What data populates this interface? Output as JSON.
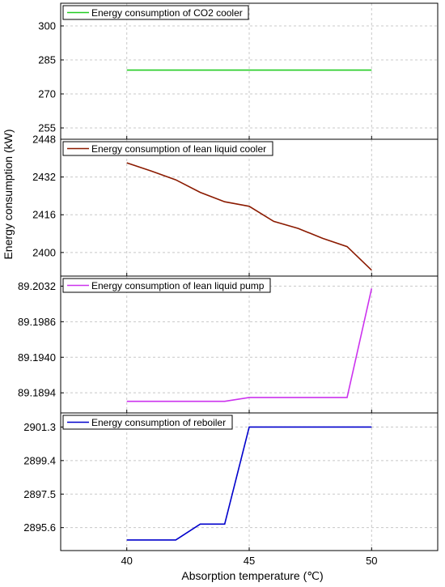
{
  "chart_data": [
    {
      "type": "line",
      "x": [
        40,
        50
      ],
      "series": [
        {
          "name": "Energy consumption of CO2 cooler",
          "values": [
            280.5,
            280.5
          ]
        }
      ],
      "ylim": [
        250,
        310
      ],
      "yticks": [
        "255",
        "270",
        "285",
        "300"
      ],
      "color": "#22cc22"
    },
    {
      "type": "line",
      "x": [
        40,
        41,
        42,
        43,
        44,
        45,
        46,
        47,
        48,
        49,
        50
      ],
      "series": [
        {
          "name": "Energy consumption of lean liquid cooler",
          "values": [
            2438,
            2434.5,
            2430.8,
            2425.5,
            2421.5,
            2419.6,
            2413.2,
            2410.2,
            2406,
            2402.5,
            2392.5
          ]
        }
      ],
      "ylim": [
        2390,
        2448
      ],
      "yticks": [
        "2400",
        "2416",
        "2432",
        "2448"
      ],
      "color": "#8b1a00"
    },
    {
      "type": "line",
      "x": [
        40,
        44,
        45,
        49,
        50
      ],
      "series": [
        {
          "name": "Energy consumption of lean liquid pump",
          "values": [
            89.1883,
            89.1883,
            89.1888,
            89.1888,
            89.2029
          ]
        }
      ],
      "ylim": [
        89.1868,
        89.2045
      ],
      "yticks": [
        "89.1894",
        "89.1940",
        "89.1986",
        "89.2032"
      ],
      "color": "#cc33ee"
    },
    {
      "type": "line",
      "x": [
        40,
        42,
        43,
        44,
        45,
        50
      ],
      "series": [
        {
          "name": "Energy consumption of reboiler",
          "values": [
            2894.9,
            2894.9,
            2895.8,
            2895.8,
            2901.3,
            2901.3
          ]
        }
      ],
      "ylim": [
        2894.3,
        2902.1
      ],
      "yticks": [
        "2895.6",
        "2897.5",
        "2899.4",
        "2901.3"
      ],
      "color": "#0000cc"
    }
  ],
  "x_axis": {
    "range": [
      37.3,
      52.7
    ],
    "ticks": [
      "40",
      "45",
      "50"
    ],
    "title": "Absorption temperature (℃)"
  },
  "y_axis": {
    "title": "Energy consumption (kW)"
  },
  "grid": true
}
